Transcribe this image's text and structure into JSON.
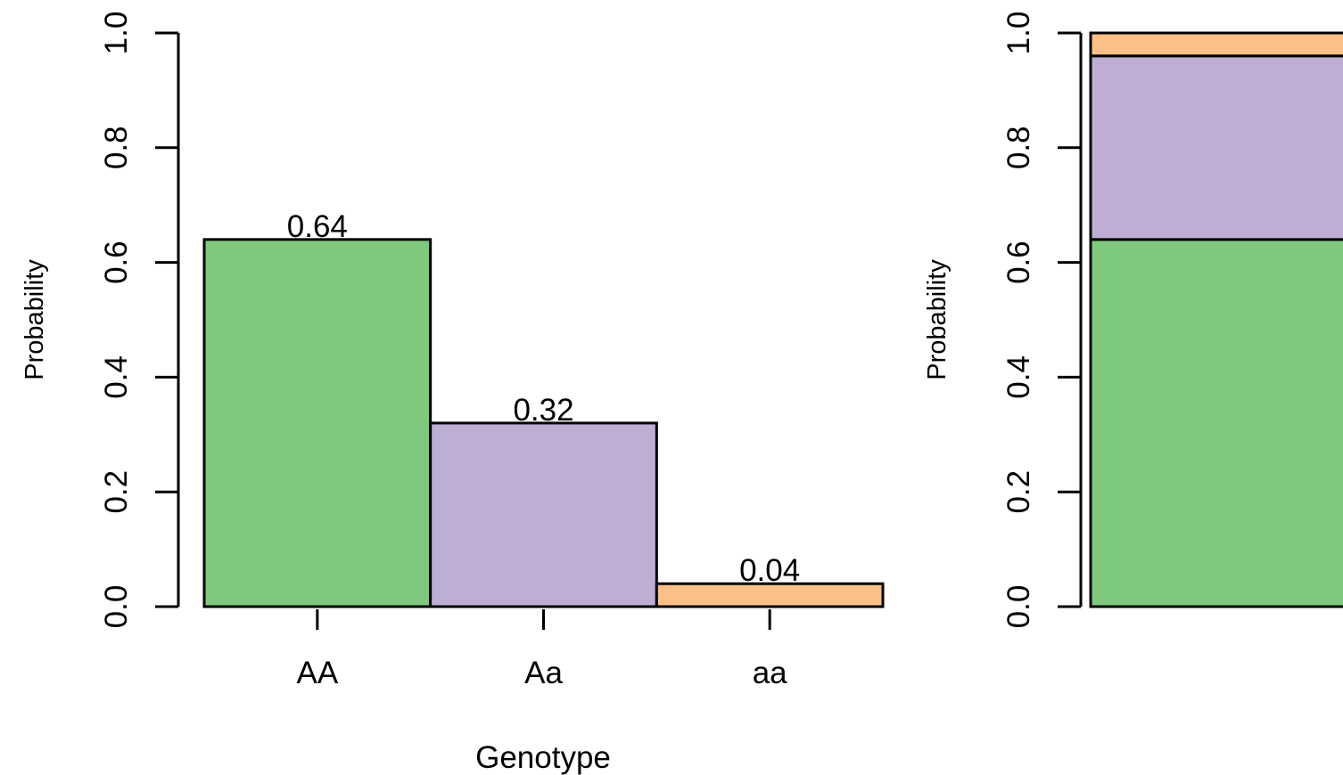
{
  "chart_data": [
    {
      "type": "bar",
      "categories": [
        "AA",
        "Aa",
        "aa"
      ],
      "values": [
        0.64,
        0.32,
        0.04
      ],
      "data_labels": [
        "0.64",
        "0.32",
        "0.04"
      ],
      "colors": [
        "#7fc97f",
        "#beaed4",
        "#fdc086"
      ],
      "xlabel": "Genotype",
      "ylabel": "Probability",
      "ylim": [
        0,
        1
      ],
      "yticks": [
        "0.0",
        "0.2",
        "0.4",
        "0.6",
        "0.8",
        "1.0"
      ],
      "grid": false
    },
    {
      "type": "bar",
      "stacked": true,
      "categories": [
        ""
      ],
      "series": [
        {
          "values": [
            0.64
          ],
          "color": "#7fc97f"
        },
        {
          "values": [
            0.32
          ],
          "color": "#beaed4"
        },
        {
          "values": [
            0.04
          ],
          "color": "#fdc086"
        }
      ],
      "ylabel": "Probability",
      "ylim": [
        0,
        1
      ],
      "yticks": [
        "0.0",
        "0.2",
        "0.4",
        "0.6",
        "0.8",
        "1.0"
      ],
      "grid": false
    }
  ]
}
